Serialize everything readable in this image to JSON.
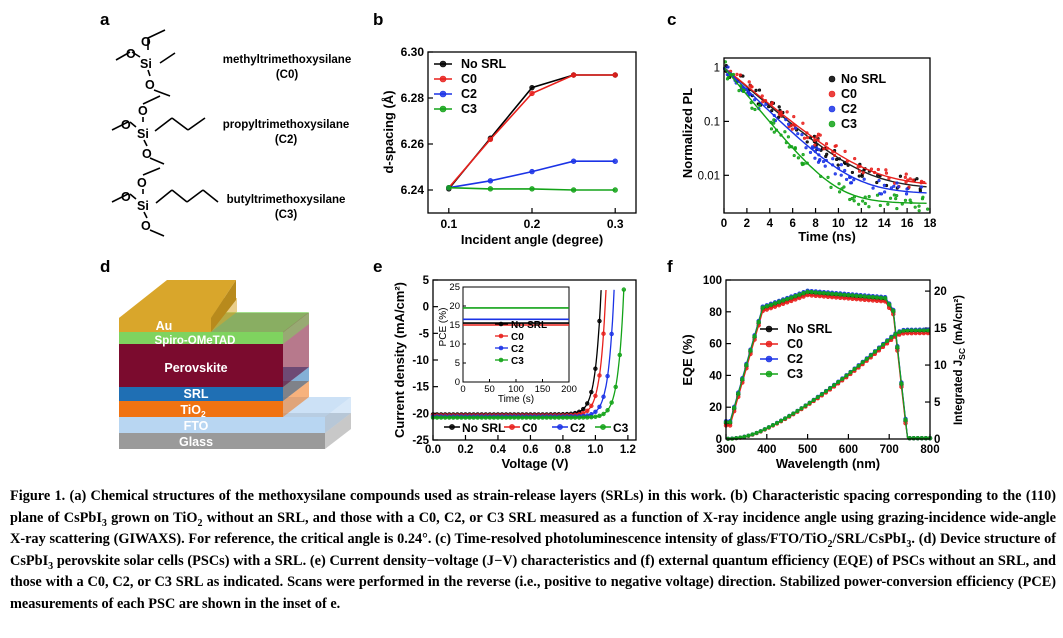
{
  "panels": {
    "a": {
      "label": "a",
      "compounds": [
        {
          "name": "methyltrimethoxysilane",
          "code": "(C0)"
        },
        {
          "name": "propyltrimethoxysilane",
          "code": "(C2)"
        },
        {
          "name": "butyltrimethoxysilane",
          "code": "(C3)"
        }
      ],
      "atom_si": "Si",
      "atom_o": "O"
    },
    "b": {
      "label": "b"
    },
    "c": {
      "label": "c"
    },
    "d": {
      "label": "d",
      "layers": {
        "au": "Au",
        "spiro": "Spiro-OMeTAD",
        "perovskite": "Perovskite",
        "srl": "SRL",
        "tio2": "TiO",
        "tio2_sub": "2",
        "fto": "FTO",
        "glass": "Glass"
      },
      "colors": {
        "au": "#d9a62b",
        "spiro": "#7fd35f",
        "perovskite": "#7b0b2e",
        "srl": "#1f6fb4",
        "tio2": "#f07312",
        "fto": "#b8d6f2",
        "glass": "#9a9a9a"
      }
    },
    "e": {
      "label": "e"
    },
    "f": {
      "label": "f"
    }
  },
  "legend_names": [
    "No SRL",
    "C0",
    "C2",
    "C3"
  ],
  "series_colors": [
    "#000000",
    "#e8201c",
    "#1b33e6",
    "#13a318"
  ],
  "chart_data": [
    {
      "panel": "b",
      "type": "line",
      "xlabel": "Incident angle (degree)",
      "ylabel": "d-spacing (Å)",
      "xlim": [
        0.075,
        0.325
      ],
      "ylim": [
        6.23,
        6.3
      ],
      "xticks": [
        "0.1",
        "0.2",
        "0.3"
      ],
      "yticks": [
        "6.24",
        "6.26",
        "6.28",
        "6.30"
      ],
      "x": [
        0.1,
        0.15,
        0.2,
        0.25,
        0.3
      ],
      "series": [
        {
          "name": "No SRL",
          "values": [
            6.2405,
            6.2625,
            6.2845,
            6.29,
            6.29
          ]
        },
        {
          "name": "C0",
          "values": [
            6.241,
            6.262,
            6.282,
            6.29,
            6.29
          ]
        },
        {
          "name": "C2",
          "values": [
            6.241,
            6.244,
            6.248,
            6.2525,
            6.2525
          ]
        },
        {
          "name": "C3",
          "values": [
            6.241,
            6.2405,
            6.2405,
            6.24,
            6.24
          ]
        }
      ],
      "legend": "top-left"
    },
    {
      "panel": "c",
      "type": "scatter",
      "xlabel": "Time (ns)",
      "ylabel": "Normalized PL",
      "xlim": [
        0,
        18
      ],
      "yscale": "log",
      "ylim": [
        0.002,
        1.5
      ],
      "xticks": [
        "0",
        "2",
        "4",
        "6",
        "8",
        "10",
        "12",
        "14",
        "16",
        "18"
      ],
      "yticks": [
        "1",
        "0.1",
        "0.01"
      ],
      "series": [
        {
          "name": "No SRL",
          "baseline": 0.0055,
          "tau": 2.4
        },
        {
          "name": "C0",
          "baseline": 0.0062,
          "tau": 2.5
        },
        {
          "name": "C2",
          "baseline": 0.0045,
          "tau": 2.1
        },
        {
          "name": "C3",
          "baseline": 0.003,
          "tau": 1.7
        }
      ],
      "legend": "top-right"
    },
    {
      "panel": "e",
      "type": "line",
      "xlabel": "Voltage (V)",
      "ylabel": "Current density (mA/cm²)",
      "xlim": [
        0,
        1.25
      ],
      "ylim": [
        -25,
        5
      ],
      "xticks": [
        "0.0",
        "0.2",
        "0.4",
        "0.6",
        "0.8",
        "1.0",
        "1.2"
      ],
      "yticks": [
        "5",
        "0",
        "-5",
        "-10",
        "-15",
        "-20",
        "-25"
      ],
      "series": [
        {
          "name": "No SRL",
          "jsc": -20.2,
          "voc": 1.03
        },
        {
          "name": "C0",
          "jsc": -20.4,
          "voc": 1.06
        },
        {
          "name": "C2",
          "jsc": -20.6,
          "voc": 1.11
        },
        {
          "name": "C3",
          "jsc": -20.8,
          "voc": 1.17
        }
      ],
      "legend": "bottom",
      "inset": {
        "xlabel": "Time (s)",
        "ylabel": "PCE (%)",
        "xlim": [
          0,
          200
        ],
        "ylim": [
          0,
          25
        ],
        "xticks": [
          "0",
          "50",
          "100",
          "150",
          "200"
        ],
        "yticks": [
          "0",
          "5",
          "10",
          "15",
          "20",
          "25"
        ],
        "series": [
          {
            "name": "No SRL",
            "value": 15.5
          },
          {
            "name": "C0",
            "value": 15.0
          },
          {
            "name": "C2",
            "value": 16.5
          },
          {
            "name": "C3",
            "value": 19.5
          }
        ]
      }
    },
    {
      "panel": "f",
      "type": "line",
      "xlabel": "Wavelength (nm)",
      "ylabel": "EQE (%)",
      "y2label": "Integrated J",
      "y2label_sub": "SC",
      "y2label_tail": " (mA/cm²)",
      "xlim": [
        300,
        800
      ],
      "ylim": [
        0,
        100
      ],
      "y2lim": [
        0,
        21.5
      ],
      "xticks": [
        "300",
        "400",
        "500",
        "600",
        "700",
        "800"
      ],
      "yticks": [
        "0",
        "20",
        "40",
        "60",
        "80",
        "100"
      ],
      "y2ticks": [
        "0",
        "5",
        "10",
        "15",
        "20"
      ],
      "series": [
        {
          "name": "No SRL"
        },
        {
          "name": "C0"
        },
        {
          "name": "C2"
        },
        {
          "name": "C3"
        }
      ],
      "legend": "left"
    }
  ],
  "caption": {
    "lead": "Figure 1.",
    "text1": " (a) Chemical structures of the methoxysilane compounds used as strain-release layers (SRLs) in this work. (b) Characteristic spacing corresponding to the (110) plane of CsPbI",
    "sub1": "3",
    "text2": " grown on TiO",
    "sub2": "2",
    "text3": " without an SRL, and those with a C0, C2, or C3 SRL measured as a function of X-ray incidence angle using grazing-incidence wide-angle X-ray scattering (GIWAXS). For reference, the critical angle is 0.24°. (c) Time-resolved photoluminescence intensity of glass/FTO/TiO",
    "sub3": "2",
    "text4": "/SRL/CsPbI",
    "sub4": "3",
    "text5": ". (d) Device structure of CsPbI",
    "sub5": "3",
    "text6": " perovskite solar cells (PSCs) with a SRL. (e) Current density−voltage (J−V) characteristics and (f) external quantum efficiency (EQE) of PSCs without an SRL, and those with a C0, C2, or C3 SRL as indicated. Scans were performed in the reverse (i.e., positive to negative voltage) direction. Stabilized power-conversion efficiency (PCE) measurements of each PSC are shown in the inset of e."
  }
}
